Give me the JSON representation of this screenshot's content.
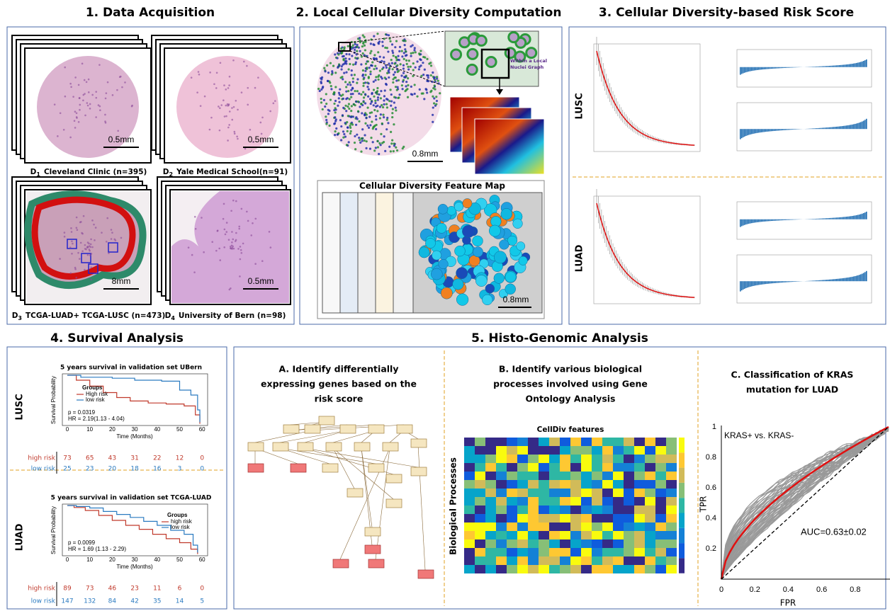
{
  "sections": [
    {
      "title": "1. Data Acquisition",
      "datasets": [
        {
          "id": "D",
          "sub": "1",
          "name": "Cleveland Clinic (n=395)",
          "scale": "0.5mm"
        },
        {
          "id": "D",
          "sub": "2",
          "name": "Yale Medical School(n=91)",
          "scale": "0.5mm"
        },
        {
          "id": "D",
          "sub": "3",
          "name": "TCGA-LUAD+ TCGA-LUSC (n=473)",
          "scale": "8mm"
        },
        {
          "id": "D",
          "sub": "4",
          "name": "University of Bern (n=98)",
          "scale": "0.5mm"
        }
      ]
    },
    {
      "title": "2. Local Cellular Diversity Computation",
      "zoom_label": [
        "Within a Local",
        "Nuclei Graph"
      ],
      "scale": "0.8mm",
      "feature_map_title": "Cellular Diversity Feature Map",
      "feature_map_scale": "0.8mm"
    },
    {
      "title": "3. Cellular Diversity-based Risk Score",
      "rows": [
        "LUSC",
        "LUAD"
      ]
    },
    {
      "title": "4. Survival Analysis",
      "panels": [
        {
          "row": "LUSC",
          "title": "5 years survival in validation set UBern",
          "ylabel": "Survival Probability",
          "xlabel": "Time (Months)",
          "xticks": [
            "0",
            "10",
            "20",
            "30",
            "40",
            "50",
            "60"
          ],
          "legend_title": "Groups",
          "legend": [
            "High risk",
            "low risk"
          ],
          "p": "p = 0.0319",
          "hr": "HR = 2.19(1.13 - 4.04)",
          "risk_table": [
            {
              "label": "high risk",
              "counts": [
                73,
                65,
                43,
                31,
                22,
                12,
                0
              ]
            },
            {
              "label": "low risk",
              "counts": [
                25,
                23,
                20,
                18,
                16,
                3,
                0
              ]
            }
          ]
        },
        {
          "row": "LUAD",
          "title": "5 years survival in validation set TCGA-LUAD",
          "ylabel": "Survival Probability",
          "xlabel": "Time (Months)",
          "xticks": [
            "0",
            "10",
            "20",
            "30",
            "40",
            "50",
            "60"
          ],
          "legend_title": "Groups",
          "legend": [
            "high risk",
            "low risk"
          ],
          "p": "p = 0.0099",
          "hr": "HR = 1.69 (1.13 - 2.29)",
          "risk_table": [
            {
              "label": "high risk",
              "counts": [
                89,
                73,
                46,
                23,
                11,
                6,
                0
              ]
            },
            {
              "label": "low risk",
              "counts": [
                147,
                132,
                84,
                42,
                35,
                14,
                5
              ]
            }
          ]
        }
      ]
    },
    {
      "title": "5. Histo-Genomic Analysis",
      "a_title": [
        "A. Identify differentially",
        "expressing genes based on the",
        "risk score"
      ],
      "b_title": [
        "B. Identify various biological",
        "processes involved using Gene",
        "Ontology Analysis"
      ],
      "heatmap_title": "CellDiv features",
      "heatmap_ylabel": "Biological Processes",
      "c_title": [
        "C. Classification of KRAS",
        "mutation for LUAD"
      ],
      "roc": {
        "legend": "KRAS+ vs. KRAS-",
        "auc": "AUC=0.63±0.02",
        "xlabel": "FPR",
        "ylabel": "TPR",
        "xticks": [
          0,
          0.2,
          0.4,
          0.6,
          0.8
        ],
        "yticks": [
          0.2,
          0.4,
          0.6,
          0.8,
          1
        ]
      }
    }
  ]
}
